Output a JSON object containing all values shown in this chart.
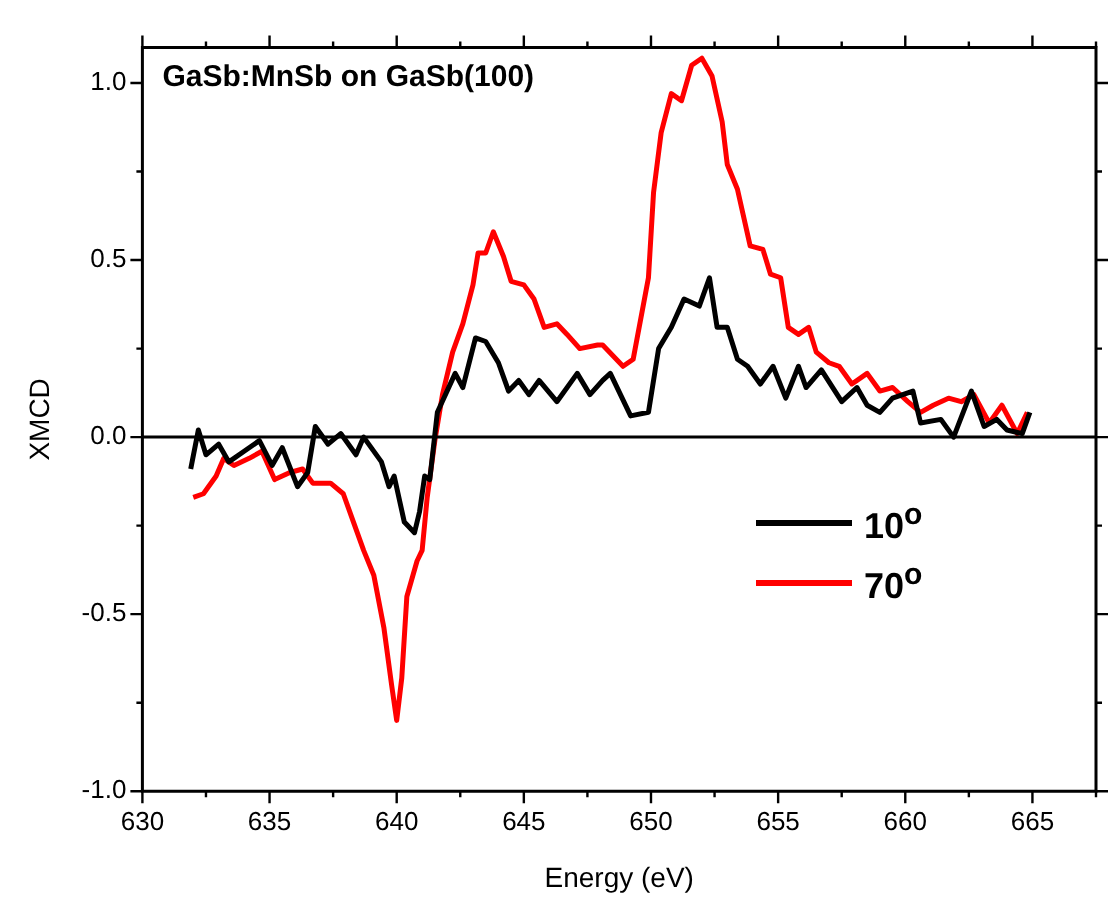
{
  "chart_data": {
    "type": "line",
    "title": "GaSb:MnSb on GaSb(100)",
    "xlabel": "Energy (eV)",
    "ylabel": "XMCD",
    "xlim": [
      630,
      667.5
    ],
    "xticks": [
      630,
      {
        "value": 632.5,
        "label": null
      },
      635,
      {
        "value": 637.5,
        "label": null
      },
      640,
      {
        "value": 642.5,
        "label": null
      },
      645,
      {
        "value": 647.5,
        "label": null
      },
      650,
      {
        "value": 652.5,
        "label": null
      },
      655,
      {
        "value": 657.5,
        "label": null
      },
      660,
      {
        "value": 662.5,
        "label": null
      },
      665,
      {
        "value": 667.5,
        "label": null
      }
    ],
    "ylim": [
      -1,
      1.1
    ],
    "yticks": [
      {
        "value": -1,
        "label": "-1.0"
      },
      {
        "value": -0.75,
        "label": null
      },
      {
        "value": -0.5,
        "label": "-0.5"
      },
      {
        "value": -0.25,
        "label": null
      },
      {
        "value": 0,
        "label": "0.0"
      },
      {
        "value": 0.25,
        "label": null
      },
      {
        "value": 0.5,
        "label": "0.5"
      },
      {
        "value": 0.75,
        "label": null
      },
      {
        "value": 1,
        "label": "1.0"
      }
    ],
    "ref_lines": [
      {
        "axis": "y",
        "value": 0,
        "color": "#000000"
      }
    ],
    "legend": "right",
    "grid": false,
    "marker": "none",
    "line_style": "solid",
    "series": [
      {
        "name": "10$^{o}$",
        "color": "#000000",
        "x": [
          631.9,
          632.2,
          632.5,
          633.0,
          633.4,
          634.0,
          634.6,
          635.1,
          635.5,
          636.1,
          636.5,
          636.8,
          637.3,
          637.8,
          638.4,
          638.7,
          639.4,
          639.7,
          639.9,
          640.3,
          640.7,
          640.9,
          641.1,
          641.3,
          641.6,
          642.3,
          642.6,
          643.1,
          643.5,
          644.0,
          644.4,
          644.8,
          645.2,
          645.6,
          646.3,
          647.1,
          647.6,
          648.1,
          648.4,
          649.2,
          649.9,
          650.3,
          650.8,
          651.3,
          651.9,
          652.3,
          652.6,
          653.0,
          653.4,
          653.8,
          654.3,
          654.8,
          655.3,
          655.8,
          656.1,
          656.7,
          657.5,
          658.1,
          658.5,
          659.0,
          659.5,
          660.3,
          660.6,
          661.4,
          661.9,
          662.6,
          663.1,
          663.6,
          664.0,
          664.6,
          664.9
        ],
        "values": [
          -0.09,
          0.02,
          -0.05,
          -0.02,
          -0.07,
          -0.04,
          -0.01,
          -0.08,
          -0.03,
          -0.14,
          -0.1,
          0.03,
          -0.02,
          0.01,
          -0.05,
          0.0,
          -0.07,
          -0.14,
          -0.11,
          -0.24,
          -0.27,
          -0.21,
          -0.11,
          -0.12,
          0.07,
          0.18,
          0.14,
          0.28,
          0.27,
          0.21,
          0.13,
          0.16,
          0.12,
          0.16,
          0.1,
          0.18,
          0.12,
          0.16,
          0.18,
          0.06,
          0.07,
          0.25,
          0.31,
          0.39,
          0.37,
          0.45,
          0.31,
          0.31,
          0.22,
          0.2,
          0.15,
          0.2,
          0.11,
          0.2,
          0.14,
          0.19,
          0.1,
          0.14,
          0.09,
          0.07,
          0.11,
          0.13,
          0.04,
          0.05,
          0.0,
          0.13,
          0.03,
          0.05,
          0.02,
          0.01,
          0.07
        ]
      },
      {
        "name": "70$^{o}$",
        "color": "#ff0000",
        "x": [
          632.0,
          632.4,
          632.9,
          633.2,
          633.6,
          634.2,
          634.7,
          635.2,
          635.8,
          636.3,
          636.7,
          637.4,
          637.9,
          638.3,
          638.7,
          639.1,
          639.5,
          639.8,
          640.0,
          640.2,
          640.4,
          640.8,
          641.0,
          641.2,
          641.5,
          641.8,
          642.2,
          642.6,
          643.0,
          643.2,
          643.5,
          643.8,
          644.2,
          644.5,
          645.0,
          645.4,
          645.8,
          646.3,
          646.7,
          647.2,
          647.9,
          648.1,
          648.9,
          649.3,
          649.9,
          650.1,
          650.4,
          650.8,
          651.2,
          651.6,
          652.0,
          652.4,
          652.8,
          653.0,
          653.4,
          653.9,
          654.4,
          654.7,
          655.1,
          655.4,
          655.8,
          656.2,
          656.5,
          657.0,
          657.4,
          657.9,
          658.5,
          659.0,
          659.5,
          660.1,
          660.6,
          661.1,
          661.7,
          662.2,
          662.7,
          663.3,
          663.8,
          664.4,
          664.8
        ],
        "values": [
          -0.17,
          -0.16,
          -0.11,
          -0.06,
          -0.08,
          -0.06,
          -0.04,
          -0.12,
          -0.1,
          -0.09,
          -0.13,
          -0.13,
          -0.16,
          -0.24,
          -0.32,
          -0.39,
          -0.54,
          -0.7,
          -0.8,
          -0.68,
          -0.45,
          -0.35,
          -0.32,
          -0.17,
          -0.01,
          0.12,
          0.24,
          0.32,
          0.43,
          0.52,
          0.52,
          0.58,
          0.51,
          0.44,
          0.43,
          0.39,
          0.31,
          0.32,
          0.29,
          0.25,
          0.26,
          0.26,
          0.2,
          0.22,
          0.45,
          0.69,
          0.86,
          0.97,
          0.95,
          1.05,
          1.07,
          1.02,
          0.89,
          0.77,
          0.7,
          0.54,
          0.53,
          0.46,
          0.45,
          0.31,
          0.29,
          0.31,
          0.24,
          0.21,
          0.2,
          0.15,
          0.18,
          0.13,
          0.14,
          0.1,
          0.07,
          0.09,
          0.11,
          0.1,
          0.12,
          0.04,
          0.09,
          0.01,
          0.07
        ]
      }
    ]
  }
}
